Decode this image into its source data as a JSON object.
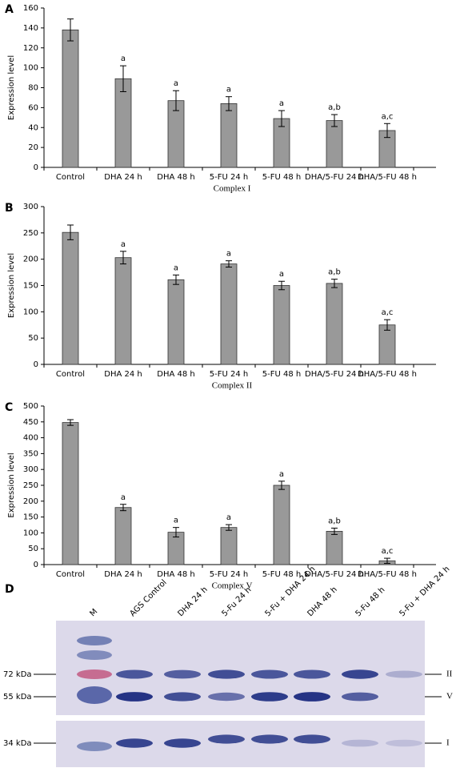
{
  "chart_data": [
    {
      "type": "bar",
      "panel": "A",
      "ylabel": "Expression level",
      "xlabel": "Complex I",
      "categories": [
        "Control",
        "DHA 24 h",
        "DHA 48 h",
        "5-FU 24 h",
        "5-FU 48 h",
        "DHA/5-FU 24 h",
        "DHA/5-FU 48 h"
      ],
      "values": [
        138,
        89,
        67,
        64,
        49,
        47,
        37
      ],
      "errors": [
        11,
        13,
        10,
        7,
        8,
        6,
        7
      ],
      "annotations": [
        null,
        "a",
        "a",
        "a",
        "a",
        "a,b",
        "a,c"
      ],
      "color": "#999999",
      "ylim": [
        0,
        160
      ],
      "yticks": [
        0,
        20,
        40,
        60,
        80,
        100,
        120,
        140,
        160
      ]
    },
    {
      "type": "bar",
      "panel": "B",
      "ylabel": "Expression level",
      "xlabel": "Complex II",
      "categories": [
        "Control",
        "DHA 24 h",
        "DHA 48 h",
        "5-FU 24 h",
        "5-FU 48 h",
        "DHA/5-FU 24 h",
        "DHA/5-FU 48 h"
      ],
      "values": [
        251,
        203,
        161,
        191,
        150,
        154,
        75
      ],
      "errors": [
        14,
        12,
        9,
        6,
        8,
        8,
        10
      ],
      "annotations": [
        null,
        "a",
        "a",
        "a",
        "a",
        "a,b",
        "a,c"
      ],
      "color": "#999999",
      "ylim": [
        0,
        300
      ],
      "yticks": [
        0,
        50,
        100,
        150,
        200,
        250,
        300
      ]
    },
    {
      "type": "bar",
      "panel": "C",
      "ylabel": "Expression level",
      "xlabel": "Complex V",
      "categories": [
        "Control",
        "DHA 24 h",
        "DHA 48 h",
        "5-FU 24 h",
        "5-FU 48 h",
        "DHA/5-FU 24 h",
        "DHA/5-FU 48 h"
      ],
      "values": [
        448,
        180,
        102,
        117,
        250,
        105,
        12
      ],
      "errors": [
        9,
        10,
        15,
        9,
        13,
        10,
        8
      ],
      "annotations": [
        null,
        "a",
        "a",
        "a",
        "a",
        "a,b",
        "a,c"
      ],
      "color": "#999999",
      "ylim": [
        0,
        500
      ],
      "yticks": [
        0,
        50,
        100,
        150,
        200,
        250,
        300,
        350,
        400,
        450,
        500
      ]
    }
  ],
  "blot": {
    "panel": "D",
    "lanes": [
      "M",
      "AGS Control",
      "DHA 24 h",
      "5-Fu 24 h",
      "5-Fu + DHA 24 h",
      "DHA 48 h",
      "5-Fu 48 h",
      "5-Fu + DHA 24 h"
    ],
    "markers": [
      "72 kDa",
      "55 kDa",
      "34 kDa"
    ],
    "complexes": [
      "II",
      "V",
      "I"
    ]
  }
}
